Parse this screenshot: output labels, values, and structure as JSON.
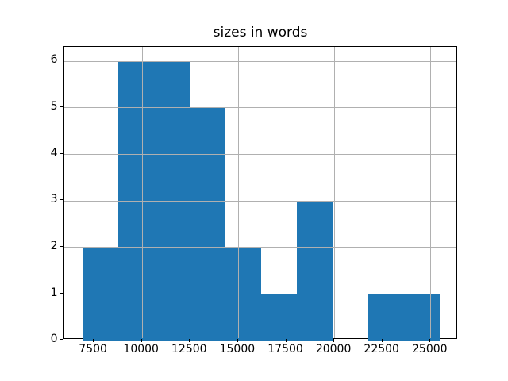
{
  "chart_data": {
    "type": "bar",
    "subtype": "histogram",
    "title": "sizes in words",
    "xlabel": "",
    "ylabel": "",
    "bin_edges": [
      6900,
      8760,
      10620,
      12480,
      14340,
      16200,
      18060,
      19920,
      21780,
      23640,
      25500
    ],
    "counts": [
      2,
      6,
      6,
      5,
      2,
      1,
      3,
      0,
      1,
      1
    ],
    "xlim": [
      5970,
      26430
    ],
    "ylim": [
      0,
      6.3
    ],
    "x_ticks": [
      7500,
      10000,
      12500,
      15000,
      17500,
      20000,
      22500,
      25000
    ],
    "y_ticks": [
      0,
      1,
      2,
      3,
      4,
      5,
      6
    ],
    "grid": true,
    "grid_over_bars": true,
    "legend": false,
    "bar_color": "#1f77b4",
    "grid_color": "#b0b0b0",
    "spine_color": "#000000",
    "text_color": "#000000",
    "background_color": "#ffffff"
  }
}
